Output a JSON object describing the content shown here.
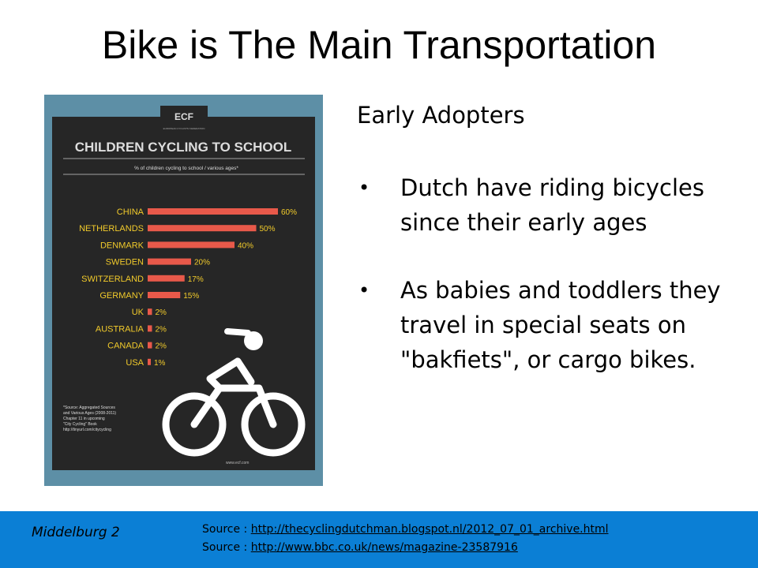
{
  "slide": {
    "title": "Bike is The Main Transportation"
  },
  "poster": {
    "logo_text": "ECF",
    "logo_subtext": "EUROPEAN CYCLISTS' FEDERATION",
    "heading": "CHILDREN CYCLING TO SCHOOL",
    "subheading": "% of children cycling to school / various ages*",
    "footnote": [
      "*Source: Aggregated Sources",
      "and Various Ages (2008-2011)",
      "Chapter 11 in upcoming",
      "\"City Cycling\" Book",
      "http://tinyurl.com/citycycling"
    ],
    "footer_url": "www.ecf.com",
    "colors": {
      "background": "#5d8fa6",
      "board": "#262626",
      "bar": "#e8594a",
      "label": "#f2cb2b"
    }
  },
  "chart_data": {
    "type": "bar",
    "orientation": "horizontal",
    "title": "CHILDREN CYCLING TO SCHOOL",
    "subtitle": "% of children cycling to school / various ages*",
    "categories": [
      "CHINA",
      "NETHERLANDS",
      "DENMARK",
      "SWEDEN",
      "SWITZERLAND",
      "GERMANY",
      "UK",
      "AUSTRALIA",
      "CANADA",
      "USA"
    ],
    "values": [
      60,
      50,
      40,
      20,
      17,
      15,
      2,
      2,
      2,
      1
    ],
    "value_labels": [
      "60%",
      "50%",
      "40%",
      "20%",
      "17%",
      "15%",
      "2%",
      "2%",
      "2%",
      "1%"
    ],
    "unit": "%",
    "xlim": [
      0,
      60
    ]
  },
  "content": {
    "subheading": "Early Adopters",
    "bullets": [
      {
        "marker": "•",
        "text": "Dutch have riding bicycles since their early ages"
      },
      {
        "marker": "•",
        "text": "As babies and toddlers they travel in special seats on \"bakfiets\", or cargo bikes."
      }
    ]
  },
  "footer": {
    "city": "Middelburg 2",
    "sources": [
      {
        "prefix": "Source : ",
        "link": "http://thecyclingdutchman.blogspot.nl/2012_07_01_archive.html"
      },
      {
        "prefix": "Source : ",
        "link": "http://www.bbc.co.uk/news/magazine-23587916"
      }
    ],
    "background_color": "#0b7fd5"
  }
}
